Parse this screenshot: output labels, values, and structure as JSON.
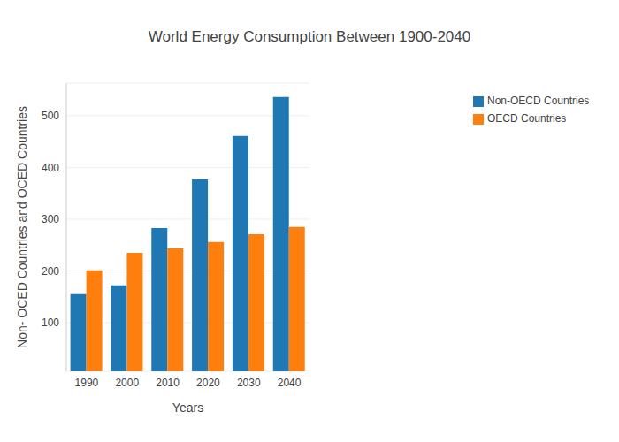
{
  "chart_data": {
    "type": "bar",
    "title": "World Energy Consumption Between 1900-2040",
    "x_label": "Years",
    "y_label": "Non- OCED Countries and OCED Countries",
    "categories": [
      "1990",
      "2000",
      "2010",
      "2020",
      "2030",
      "2040"
    ],
    "series": [
      {
        "name": "Non-OECD Countries",
        "color": "#1f77b4",
        "values": [
          155,
          172,
          283,
          377,
          461,
          536
        ]
      },
      {
        "name": "OECD Countries",
        "color": "#ff7f0e",
        "values": [
          201,
          235,
          244,
          256,
          271,
          285
        ]
      }
    ],
    "ylim": [
      6,
      563
    ],
    "yticks": [
      100,
      200,
      300,
      400,
      500
    ],
    "grid": true,
    "legend": "upper right"
  }
}
